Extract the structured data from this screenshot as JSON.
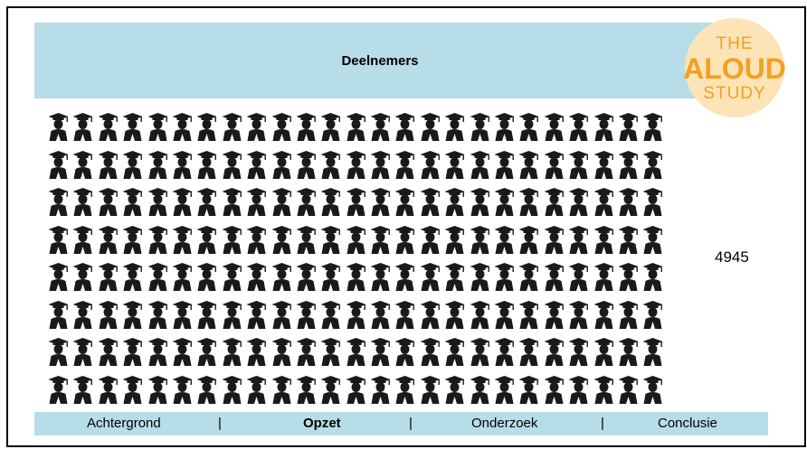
{
  "header": {
    "title": "Deelnemers"
  },
  "logo": {
    "line1": "THE",
    "line2": "ALOUD",
    "line3": "STUDY"
  },
  "participants": {
    "count_label": "4945",
    "grid_rows": 8,
    "grid_cols": 25
  },
  "nav": {
    "items": [
      {
        "label": "Achtergrond"
      },
      {
        "label": "Opzet"
      },
      {
        "label": "Onderzoek"
      },
      {
        "label": "Conclusie"
      }
    ],
    "separator": "|"
  },
  "colors": {
    "header_bg": "#b7dde8",
    "logo_bg": "#fce4b6",
    "logo_text": "#f3a021",
    "icon": "#1a1a1a"
  }
}
